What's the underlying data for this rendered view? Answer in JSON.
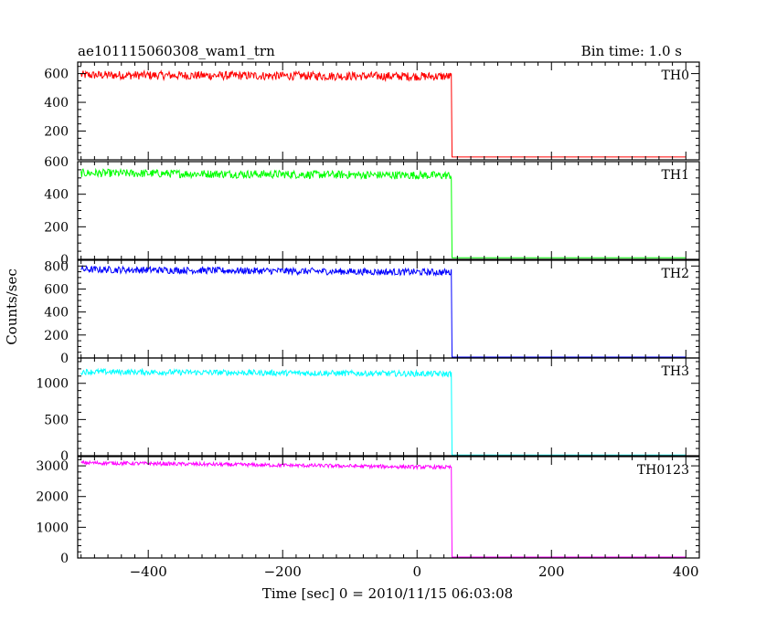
{
  "header": {
    "left": "ae101115060308_wam1_trn",
    "right": "Bin time: 1.0 s"
  },
  "chart_data": {
    "type": "line",
    "xlabel": "Time [sec] 0 = 2010/11/15 06:03:08",
    "ylabel": "Counts/sec",
    "xlim": [
      -505,
      420
    ],
    "x_ticks": [
      -400,
      -200,
      0,
      200,
      400
    ],
    "x_tick_labels": [
      "−400",
      "−200",
      "0",
      "200",
      "400"
    ],
    "grid": false,
    "panels": [
      {
        "name": "TH0",
        "color": "#ff0000",
        "ylim": [
          0,
          680
        ],
        "y_ticks": [
          0,
          200,
          400,
          600
        ],
        "y_minor": 50,
        "y_tick_labels": [
          "200",
          "400",
          "600"
        ],
        "x_start": -500,
        "x_drop": 52,
        "x_end": 400,
        "level_start": 590,
        "level_end": 580,
        "noise": 30,
        "low_level": 20
      },
      {
        "name": "TH1",
        "color": "#00ff00",
        "ylim": [
          0,
          600
        ],
        "y_ticks": [
          0,
          200,
          400,
          600
        ],
        "y_minor": 50,
        "y_tick_labels": [
          "0",
          "200",
          "400",
          "600"
        ],
        "x_start": -500,
        "x_drop": 52,
        "x_end": 400,
        "level_start": 530,
        "level_end": 515,
        "noise": 25,
        "low_level": 10
      },
      {
        "name": "TH2",
        "color": "#0000ff",
        "ylim": [
          0,
          850
        ],
        "y_ticks": [
          0,
          200,
          400,
          600,
          800
        ],
        "y_minor": 50,
        "y_tick_labels": [
          "0",
          "200",
          "400",
          "600",
          "800"
        ],
        "x_start": -500,
        "x_drop": 52,
        "x_end": 400,
        "level_start": 770,
        "level_end": 745,
        "noise": 30,
        "low_level": 8
      },
      {
        "name": "TH3",
        "color": "#00ffff",
        "ylim": [
          0,
          1350
        ],
        "y_ticks": [
          0,
          500,
          1000
        ],
        "y_minor": 100,
        "y_tick_labels": [
          "0",
          "500",
          "1000"
        ],
        "x_start": -500,
        "x_drop": 52,
        "x_end": 400,
        "level_start": 1160,
        "level_end": 1130,
        "noise": 40,
        "low_level": 10
      },
      {
        "name": "TH0123",
        "color": "#ff00ff",
        "ylim": [
          0,
          3300
        ],
        "y_ticks": [
          0,
          1000,
          2000,
          3000
        ],
        "y_minor": 200,
        "y_tick_labels": [
          "0",
          "1000",
          "2000",
          "3000"
        ],
        "x_start": -500,
        "x_drop": 52,
        "x_end": 400,
        "level_start": 3100,
        "level_end": 2950,
        "noise": 60,
        "low_level": 30
      }
    ]
  }
}
